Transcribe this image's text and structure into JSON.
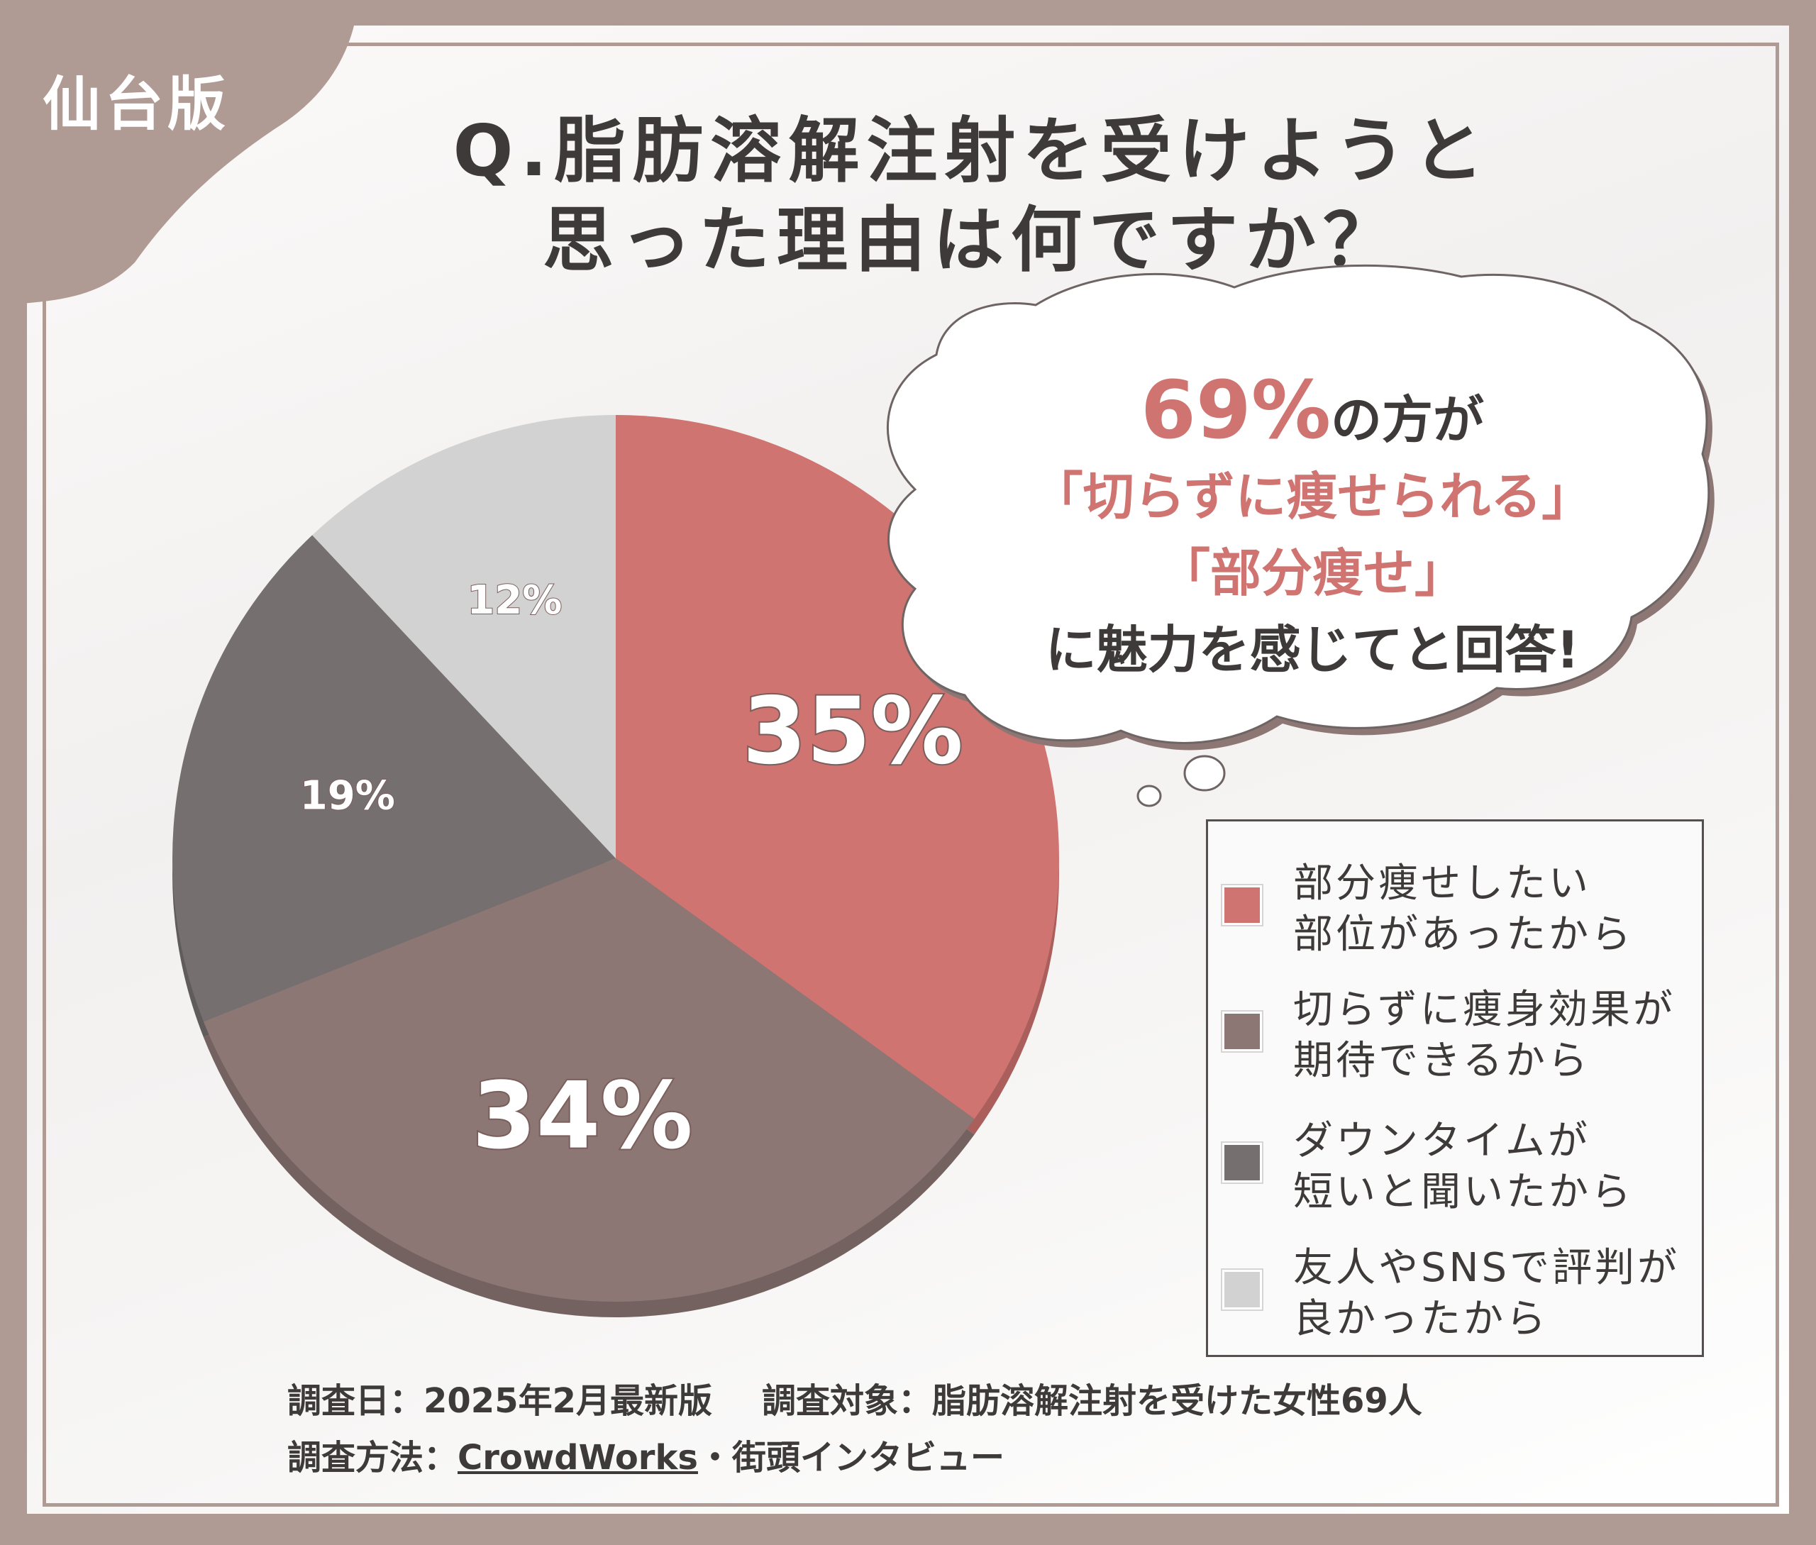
{
  "region_label": "仙台版",
  "question": {
    "line1": "Q.脂肪溶解注射を受けようと",
    "line2": "思った理由は何ですか？"
  },
  "callout": {
    "percent": "69%",
    "line1_suffix": "の方が",
    "line2": "「切らずに痩せられる」",
    "line3": "「部分痩せ」",
    "line4": "に魅力を感じてと回答!"
  },
  "chart_data": {
    "type": "pie",
    "title": "",
    "start_angle_deg": 0,
    "direction": "clockwise",
    "slices": [
      {
        "name": "部分痩せしたい部位があったから",
        "value": 35,
        "label": "35%",
        "color": "#cf7470"
      },
      {
        "name": "切らずに痩身効果が期待できるから",
        "value": 34,
        "label": "34%",
        "color": "#8c7775"
      },
      {
        "name": "ダウンタイムが短いと聞いたから",
        "value": 19,
        "label": "19%",
        "color": "#75706f"
      },
      {
        "name": "友人やSNSで評判が良かったから",
        "value": 12,
        "label": "12%",
        "color": "#d3d2d2"
      }
    ],
    "legend": [
      {
        "line1": "部分痩せしたい",
        "line2": "部位があったから",
        "color": "#cf7470"
      },
      {
        "line1": "切らずに痩身効果が",
        "line2": "期待できるから",
        "color": "#8c7775"
      },
      {
        "line1": "ダウンタイムが",
        "line2": "短いと聞いたから",
        "color": "#75706f"
      },
      {
        "line1": "友人やSNSで評判が",
        "line2": "良かったから",
        "color": "#d3d2d2"
      }
    ],
    "legend_position": "bottom-right"
  },
  "footer": {
    "date_label": "調査日：2025年2月最新版",
    "target_label": "調査対象：脂肪溶解注射を受けた女性69人",
    "method_prefix": "調査方法：",
    "method_link": "CrowdWorks",
    "method_suffix": "・街頭インタビュー"
  },
  "colors": {
    "frame": "#b09a94",
    "accent": "#cf7470",
    "text": "#3e3a39"
  }
}
